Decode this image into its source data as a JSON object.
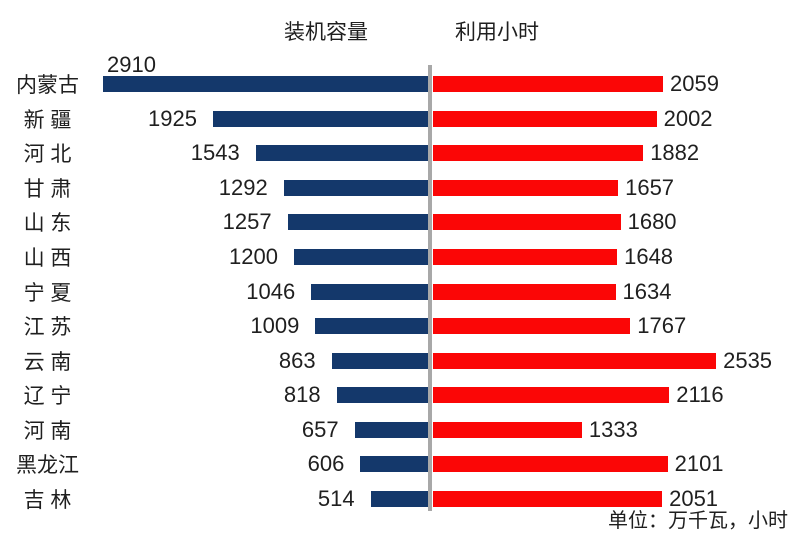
{
  "chart_data": {
    "type": "bar",
    "variant": "tornado-bidirectional",
    "title": "",
    "categories": [
      "内蒙古",
      "新 疆",
      "河 北",
      "甘 肃",
      "山 东",
      "山 西",
      "宁 夏",
      "江 苏",
      "云 南",
      "辽 宁",
      "河 南",
      "黑龙江",
      "吉 林"
    ],
    "series": [
      {
        "name": "装机容量",
        "side": "left",
        "color": "#14386B",
        "values": [
          2910,
          1925,
          1543,
          1292,
          1257,
          1200,
          1046,
          1009,
          863,
          818,
          657,
          606,
          514
        ]
      },
      {
        "name": "利用小时",
        "side": "right",
        "color": "#FB0606",
        "values": [
          2059,
          2002,
          1882,
          1657,
          1680,
          1648,
          1634,
          1767,
          2535,
          2116,
          1333,
          2101,
          2051
        ]
      }
    ],
    "xlim": [
      0,
      2980
    ],
    "grid": false,
    "legend_position": "top-inside",
    "data_labels": "outside-end",
    "unit_note": "单位：万千瓦，小时",
    "colors": {
      "capacity_bar": "#14386B",
      "hours_bar": "#FB0606",
      "center_axis_line": "#A8A8A8",
      "text": "#1F1F1F",
      "background": "#FFFFFF"
    }
  }
}
